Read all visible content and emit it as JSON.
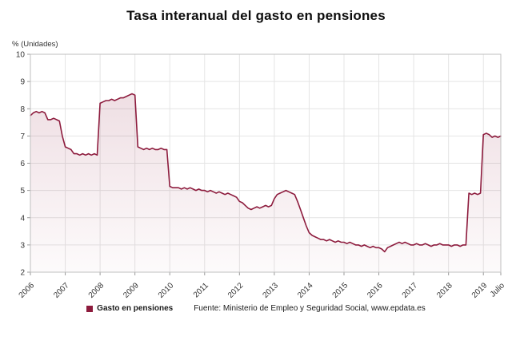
{
  "title": "Tasa interanual del gasto en pensiones",
  "y_axis_unit": "% (Unidades)",
  "legend": {
    "label": "Gasto en pensiones"
  },
  "source": "Fuente: Ministerio de Empleo y Seguridad Social, www.epdata.es",
  "colors": {
    "line": "#8d1b3d",
    "grid": "#e4e4e4",
    "border": "#bfbfbf",
    "axis_text": "#333333"
  },
  "chart_data": {
    "type": "area",
    "title": "Tasa interanual del gasto en pensiones",
    "ylabel": "% (Unidades)",
    "ylim": [
      2,
      10
    ],
    "yticks": [
      2,
      3,
      4,
      5,
      6,
      7,
      8,
      9,
      10
    ],
    "grid": true,
    "legend_position": "bottom",
    "x_start": "2006-01",
    "x_end": "2019-07",
    "x_tick_labels": [
      "2006",
      "2007",
      "2008",
      "2009",
      "2010",
      "2011",
      "2012",
      "2013",
      "2014",
      "2015",
      "2016",
      "2017",
      "2018",
      "2019",
      "Julio"
    ],
    "series": [
      {
        "name": "Gasto en pensiones",
        "values": [
          7.75,
          7.85,
          7.9,
          7.85,
          7.9,
          7.85,
          7.6,
          7.6,
          7.65,
          7.6,
          7.55,
          7.0,
          6.6,
          6.55,
          6.5,
          6.35,
          6.35,
          6.3,
          6.35,
          6.3,
          6.35,
          6.3,
          6.35,
          6.3,
          8.2,
          8.25,
          8.3,
          8.3,
          8.35,
          8.3,
          8.35,
          8.4,
          8.4,
          8.45,
          8.5,
          8.55,
          8.5,
          6.6,
          6.55,
          6.5,
          6.55,
          6.5,
          6.55,
          6.5,
          6.5,
          6.55,
          6.5,
          6.5,
          5.15,
          5.1,
          5.1,
          5.1,
          5.05,
          5.1,
          5.05,
          5.1,
          5.05,
          5.0,
          5.05,
          5.0,
          5.0,
          4.95,
          5.0,
          4.95,
          4.9,
          4.95,
          4.9,
          4.85,
          4.9,
          4.85,
          4.8,
          4.75,
          4.6,
          4.55,
          4.45,
          4.35,
          4.3,
          4.35,
          4.4,
          4.35,
          4.4,
          4.45,
          4.4,
          4.45,
          4.7,
          4.85,
          4.9,
          4.95,
          5.0,
          4.95,
          4.9,
          4.85,
          4.6,
          4.3,
          4.0,
          3.7,
          3.45,
          3.35,
          3.3,
          3.25,
          3.2,
          3.2,
          3.15,
          3.2,
          3.15,
          3.1,
          3.15,
          3.1,
          3.1,
          3.05,
          3.1,
          3.05,
          3.0,
          3.0,
          2.95,
          3.0,
          2.95,
          2.9,
          2.95,
          2.9,
          2.9,
          2.85,
          2.75,
          2.9,
          2.95,
          3.0,
          3.05,
          3.1,
          3.05,
          3.1,
          3.05,
          3.0,
          3.0,
          3.05,
          3.0,
          3.0,
          3.05,
          3.0,
          2.95,
          3.0,
          3.0,
          3.05,
          3.0,
          3.0,
          3.0,
          2.95,
          3.0,
          3.0,
          2.95,
          3.0,
          3.0,
          4.9,
          4.85,
          4.9,
          4.85,
          4.9,
          7.05,
          7.1,
          7.05,
          6.95,
          7.0,
          6.95,
          7.0
        ]
      }
    ]
  }
}
